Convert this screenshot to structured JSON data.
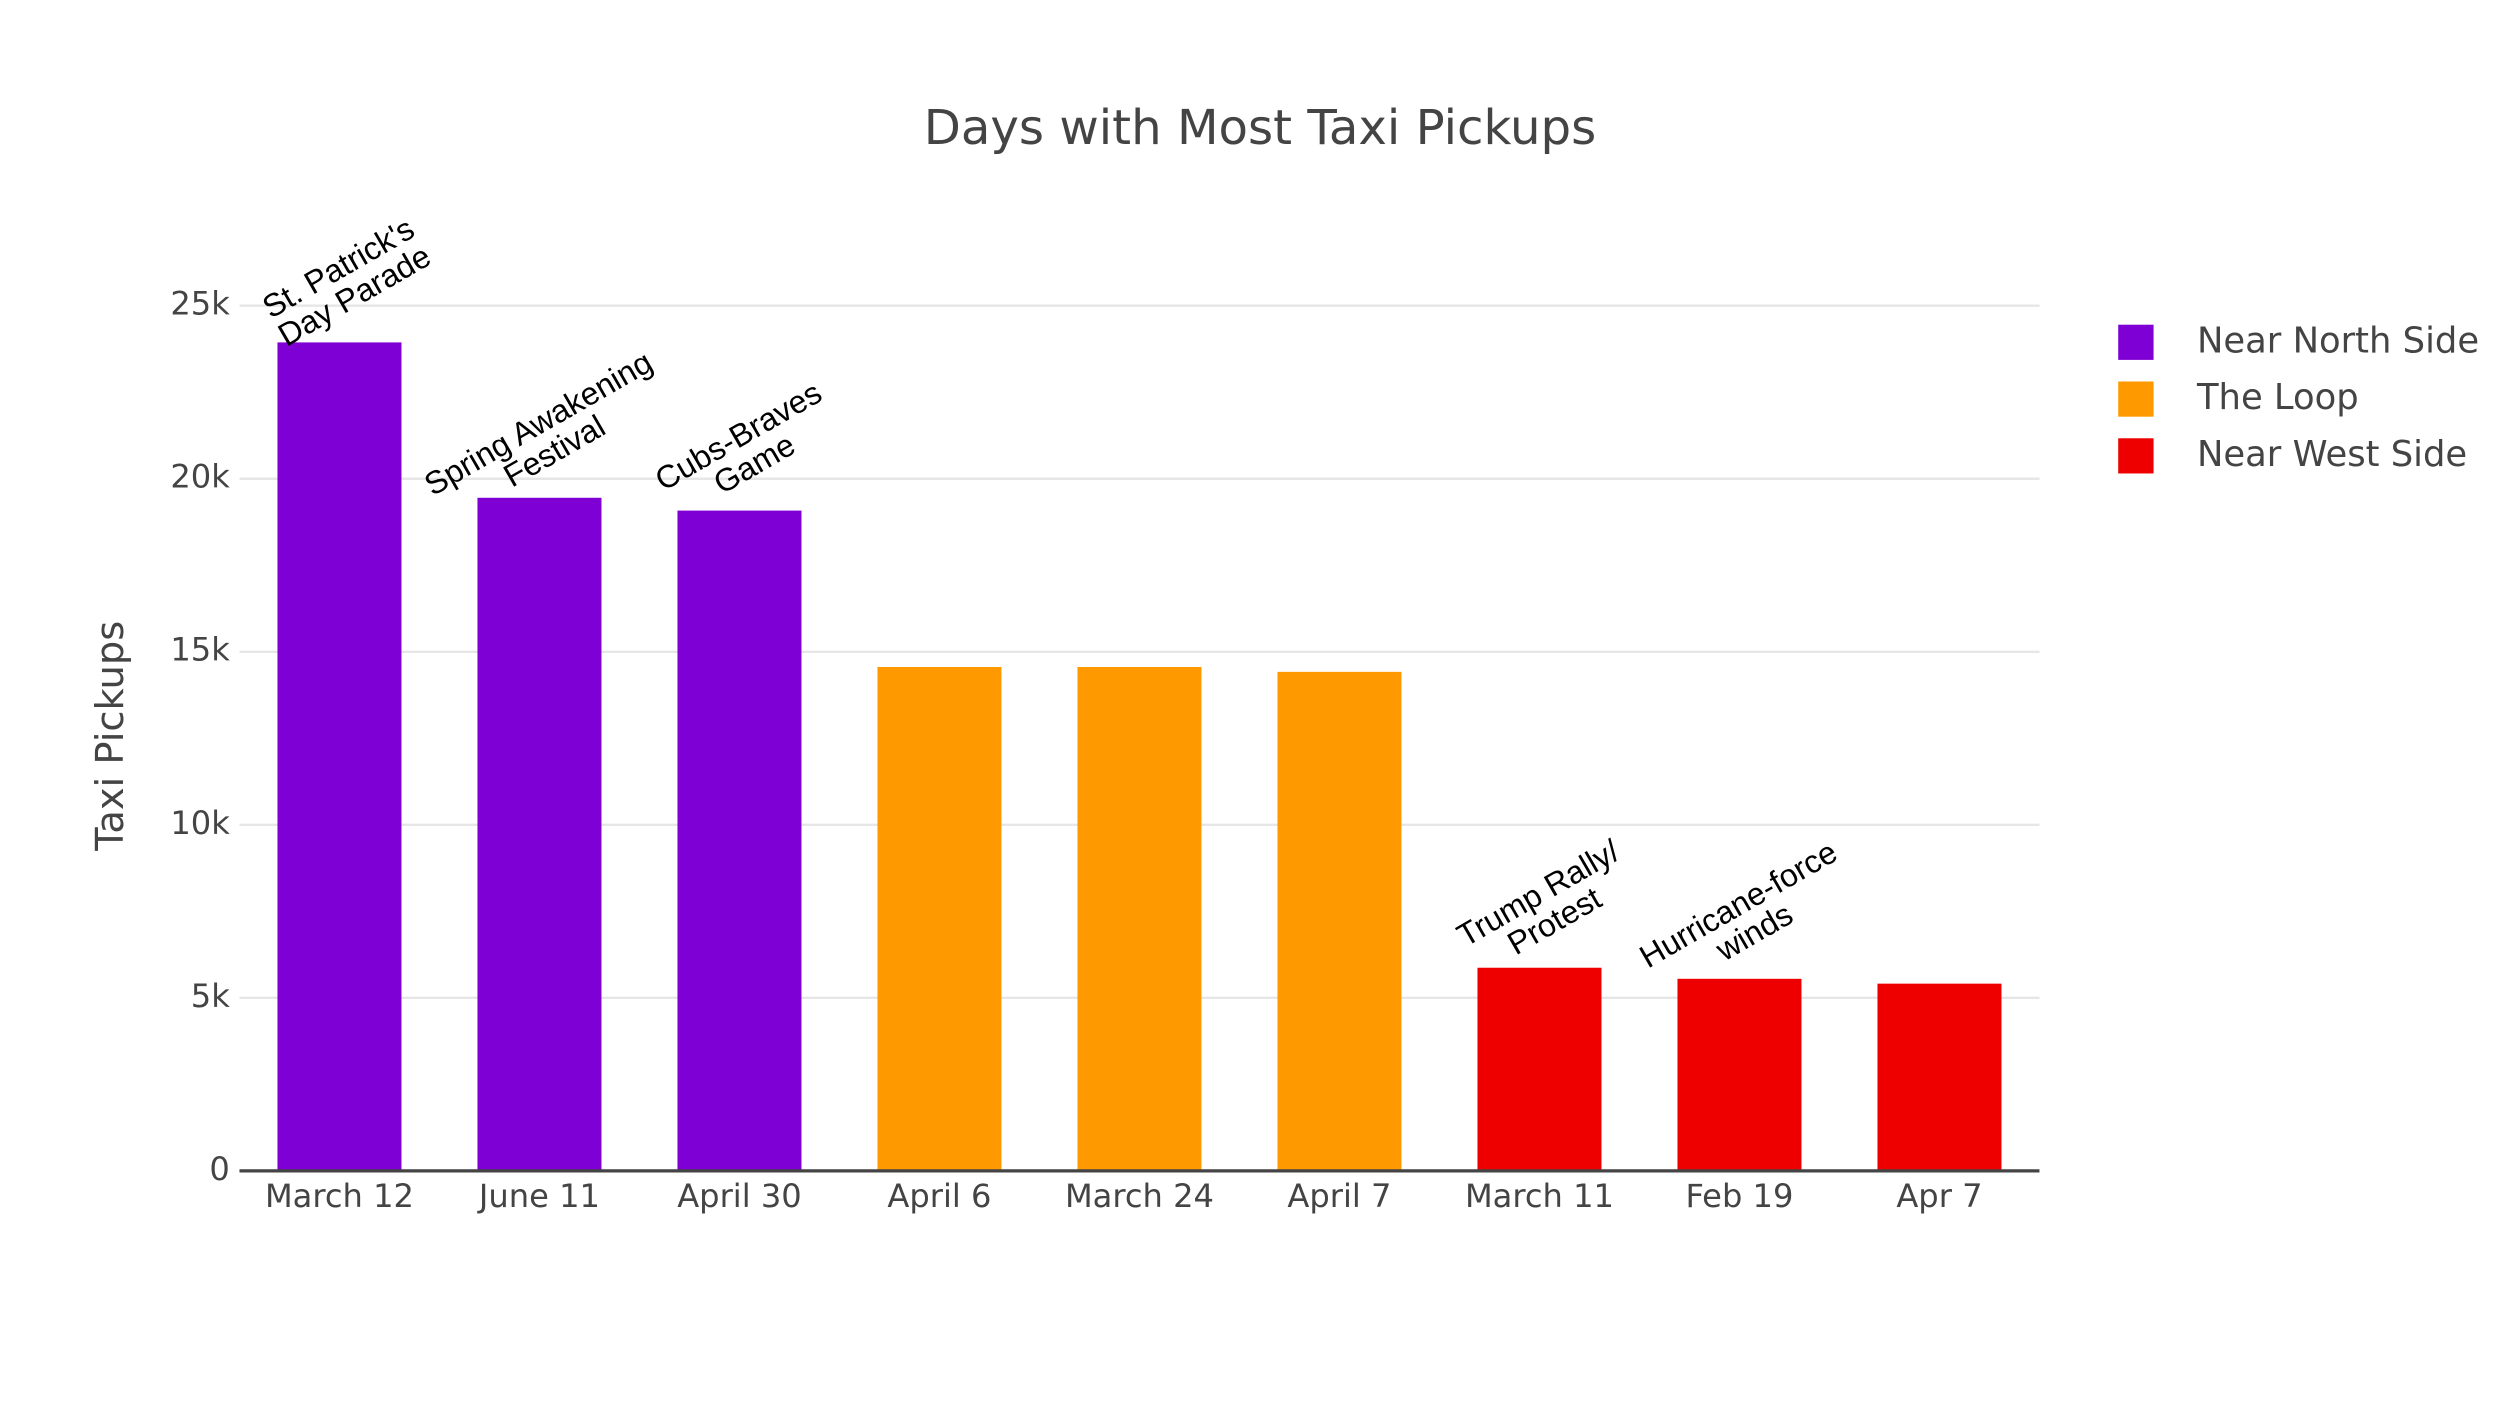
{
  "chart_data": {
    "type": "bar",
    "title": "Days with Most Taxi Pickups",
    "y_label": "Taxi Pickups",
    "categories": [
      "March 12",
      "June 11",
      "April 30",
      "April 6",
      "March 24",
      "April 7",
      "March 11",
      "Feb 19",
      "Apr 7"
    ],
    "series": [
      {
        "name": "Near North Side",
        "color": "#7f00d4",
        "values": [
          23940,
          19450,
          19080,
          null,
          null,
          null,
          null,
          null,
          null
        ]
      },
      {
        "name": "The Loop",
        "color": "#ff9900",
        "values": [
          null,
          null,
          null,
          14560,
          14560,
          14420,
          null,
          null,
          null
        ]
      },
      {
        "name": "Near West Side",
        "color": "#ee0000",
        "values": [
          null,
          null,
          null,
          null,
          null,
          null,
          5870,
          5550,
          5410
        ]
      }
    ],
    "annotations": [
      [
        "St. Patrick's",
        "Day Parade"
      ],
      [
        "Spring Awakening",
        "Festival"
      ],
      [
        "Cubs-Braves",
        "Game"
      ],
      null,
      null,
      null,
      [
        "Trump Rally/",
        "Protest"
      ],
      [
        "Hurricane-force",
        "winds"
      ],
      null
    ],
    "ylim": [
      0,
      26300
    ],
    "yticks": [
      0,
      {
        "value": 5000,
        "label": "5k"
      },
      {
        "value": 10000,
        "label": "10k"
      },
      {
        "value": 15000,
        "label": "15k"
      },
      {
        "value": 20000,
        "label": "20k"
      },
      {
        "value": 25000,
        "label": "25k"
      }
    ],
    "grid": true,
    "legend": "right"
  }
}
